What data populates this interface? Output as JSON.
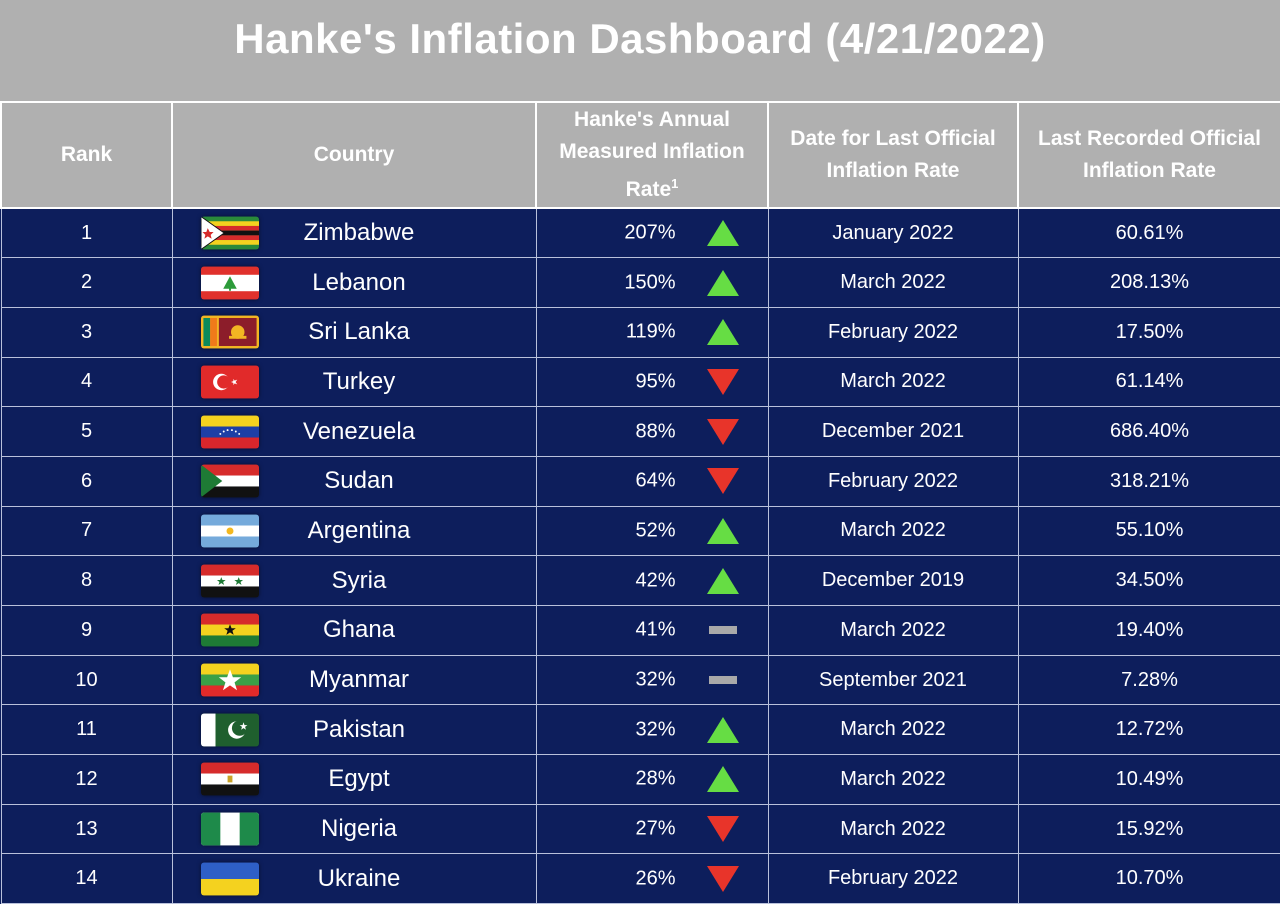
{
  "title": "Hanke's Inflation Dashboard (4/21/2022)",
  "headers": {
    "rank": "Rank",
    "country": "Country",
    "hanke_rate": "Hanke's Annual Measured Inflation Rate",
    "hanke_rate_note": "1",
    "official_date": "Date for Last Official Inflation Rate",
    "official_rate": "Last Recorded Official Inflation Rate"
  },
  "colors": {
    "up": "#66dd44",
    "down": "#e8342a",
    "flat": "#a9a9a9",
    "header_bg": "#b0b0b0",
    "row_bg": "#0d1e5c"
  },
  "chart_data": {
    "type": "table",
    "columns": [
      "Rank",
      "Country",
      "Hanke's Annual Measured Inflation Rate",
      "Trend",
      "Date for Last Official Inflation Rate",
      "Last Recorded Official Inflation Rate"
    ],
    "rows": [
      {
        "rank": "1",
        "country": "Zimbabwe",
        "flag_icon": "flag-zimbabwe-icon",
        "hanke": "207%",
        "trend": "up",
        "date": "January 2022",
        "official": "60.61%"
      },
      {
        "rank": "2",
        "country": "Lebanon",
        "flag_icon": "flag-lebanon-icon",
        "hanke": "150%",
        "trend": "up",
        "date": "March 2022",
        "official": "208.13%"
      },
      {
        "rank": "3",
        "country": "Sri Lanka",
        "flag_icon": "flag-sri-lanka-icon",
        "hanke": "119%",
        "trend": "up",
        "date": "February 2022",
        "official": "17.50%"
      },
      {
        "rank": "4",
        "country": "Turkey",
        "flag_icon": "flag-turkey-icon",
        "hanke": "95%",
        "trend": "down",
        "date": "March 2022",
        "official": "61.14%"
      },
      {
        "rank": "5",
        "country": "Venezuela",
        "flag_icon": "flag-venezuela-icon",
        "hanke": "88%",
        "trend": "down",
        "date": "December 2021",
        "official": "686.40%"
      },
      {
        "rank": "6",
        "country": "Sudan",
        "flag_icon": "flag-sudan-icon",
        "hanke": "64%",
        "trend": "down",
        "date": "February 2022",
        "official": "318.21%"
      },
      {
        "rank": "7",
        "country": "Argentina",
        "flag_icon": "flag-argentina-icon",
        "hanke": "52%",
        "trend": "up",
        "date": "March 2022",
        "official": "55.10%"
      },
      {
        "rank": "8",
        "country": "Syria",
        "flag_icon": "flag-syria-icon",
        "hanke": "42%",
        "trend": "up",
        "date": "December 2019",
        "official": "34.50%"
      },
      {
        "rank": "9",
        "country": "Ghana",
        "flag_icon": "flag-ghana-icon",
        "hanke": "41%",
        "trend": "flat",
        "date": "March 2022",
        "official": "19.40%"
      },
      {
        "rank": "10",
        "country": "Myanmar",
        "flag_icon": "flag-myanmar-icon",
        "hanke": "32%",
        "trend": "flat",
        "date": "September 2021",
        "official": "7.28%"
      },
      {
        "rank": "11",
        "country": "Pakistan",
        "flag_icon": "flag-pakistan-icon",
        "hanke": "32%",
        "trend": "up",
        "date": "March 2022",
        "official": "12.72%"
      },
      {
        "rank": "12",
        "country": "Egypt",
        "flag_icon": "flag-egypt-icon",
        "hanke": "28%",
        "trend": "up",
        "date": "March 2022",
        "official": "10.49%"
      },
      {
        "rank": "13",
        "country": "Nigeria",
        "flag_icon": "flag-nigeria-icon",
        "hanke": "27%",
        "trend": "down",
        "date": "March 2022",
        "official": "15.92%"
      },
      {
        "rank": "14",
        "country": "Ukraine",
        "flag_icon": "flag-ukraine-icon",
        "hanke": "26%",
        "trend": "down",
        "date": "February 2022",
        "official": "10.70%"
      }
    ]
  }
}
